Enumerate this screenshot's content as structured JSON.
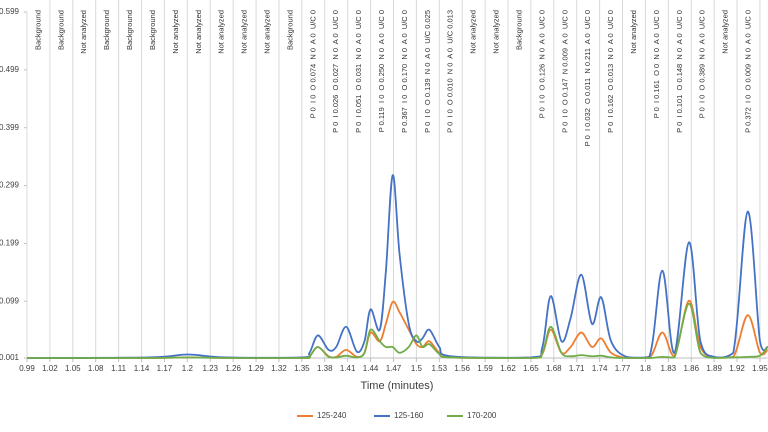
{
  "chart_data": {
    "type": "line",
    "x_label": "Time (minutes)",
    "xlim": [
      0.99,
      1.96
    ],
    "xticks": [
      0.99,
      1.02,
      1.05,
      1.08,
      1.11,
      1.14,
      1.17,
      1.2,
      1.23,
      1.26,
      1.29,
      1.32,
      1.35,
      1.38,
      1.41,
      1.44,
      1.47,
      1.5,
      1.53,
      1.56,
      1.59,
      1.62,
      1.65,
      1.68,
      1.71,
      1.74,
      1.77,
      1.8,
      1.83,
      1.86,
      1.89,
      1.92,
      1.95
    ],
    "ylim": [
      0.001,
      0.599
    ],
    "yticks": [
      0.001,
      0.099,
      0.199,
      0.299,
      0.399,
      0.499,
      0.599
    ],
    "x_grid": true,
    "legend": "bottom",
    "x": [
      0.99,
      1.15,
      1.2,
      1.25,
      1.35,
      1.36,
      1.371,
      1.385,
      1.395,
      1.408,
      1.422,
      1.432,
      1.44,
      1.452,
      1.46,
      1.469,
      1.478,
      1.49,
      1.5,
      1.508,
      1.517,
      1.53,
      1.545,
      1.65,
      1.665,
      1.676,
      1.69,
      1.702,
      1.716,
      1.73,
      1.742,
      1.755,
      1.775,
      1.805,
      1.822,
      1.838,
      1.857,
      1.872,
      1.89,
      1.915,
      1.934,
      1.95,
      1.96
    ],
    "series": [
      {
        "name": "125-240",
        "color": "#ed7d31",
        "values": [
          0.001,
          0.001,
          0.002,
          0.001,
          0.001,
          0.004,
          0.02,
          0.004,
          0.003,
          0.015,
          0.003,
          0.01,
          0.045,
          0.03,
          0.06,
          0.098,
          0.08,
          0.05,
          0.025,
          0.02,
          0.03,
          0.01,
          0.002,
          0.001,
          0.008,
          0.05,
          0.01,
          0.02,
          0.045,
          0.02,
          0.035,
          0.01,
          0.001,
          0.001,
          0.045,
          0.005,
          0.1,
          0.02,
          0.002,
          0.003,
          0.075,
          0.01,
          0.015
        ]
      },
      {
        "name": "125-160",
        "color": "#4472c4",
        "values": [
          0.001,
          0.002,
          0.007,
          0.002,
          0.002,
          0.01,
          0.04,
          0.015,
          0.02,
          0.055,
          0.012,
          0.03,
          0.085,
          0.05,
          0.15,
          0.317,
          0.18,
          0.06,
          0.03,
          0.035,
          0.05,
          0.02,
          0.004,
          0.002,
          0.02,
          0.108,
          0.03,
          0.07,
          0.145,
          0.06,
          0.106,
          0.03,
          0.003,
          0.003,
          0.152,
          0.01,
          0.201,
          0.03,
          0.003,
          0.01,
          0.254,
          0.03,
          0.02
        ]
      },
      {
        "name": "170-200",
        "color": "#70ad47",
        "values": [
          0.001,
          0.001,
          0.002,
          0.001,
          0.001,
          0.004,
          0.02,
          0.003,
          0.002,
          0.005,
          0.002,
          0.01,
          0.05,
          0.03,
          0.02,
          0.02,
          0.01,
          0.02,
          0.04,
          0.02,
          0.025,
          0.008,
          0.002,
          0.001,
          0.01,
          0.055,
          0.01,
          0.004,
          0.006,
          0.004,
          0.005,
          0.002,
          0.001,
          0.001,
          0.003,
          0.002,
          0.095,
          0.01,
          0.001,
          0.002,
          0.003,
          0.005,
          0.02
        ]
      }
    ],
    "annotations": [
      {
        "x": 1.005,
        "label": "Background"
      },
      {
        "x": 1.035,
        "label": "Background"
      },
      {
        "x": 1.065,
        "label": "Not analyzed"
      },
      {
        "x": 1.095,
        "label": "Background"
      },
      {
        "x": 1.125,
        "label": "Background"
      },
      {
        "x": 1.155,
        "label": "Background"
      },
      {
        "x": 1.185,
        "label": "Not analyzed"
      },
      {
        "x": 1.215,
        "label": "Not analyzed"
      },
      {
        "x": 1.245,
        "label": "Not analyzed"
      },
      {
        "x": 1.275,
        "label": "Not analyzed"
      },
      {
        "x": 1.305,
        "label": "Not analyzed"
      },
      {
        "x": 1.335,
        "label": "Background"
      },
      {
        "x": 1.365,
        "label": "P 0  I 0  O 0.074  N 0  A 0  U/C 0"
      },
      {
        "x": 1.395,
        "label": "P 0  I 0.026  O 0.027  N 0  A 0  U/C 0"
      },
      {
        "x": 1.425,
        "label": "P 0  I 0.051  O 0.031  N 0  A 0  U/C 0"
      },
      {
        "x": 1.455,
        "label": "P 0.119  I 0  O 0.250  N 0  A 0  U/C 0"
      },
      {
        "x": 1.485,
        "label": "P 0.367  I 0  O 0.170  N 0  A 0  U/C 0"
      },
      {
        "x": 1.515,
        "label": "P 0  I 0  O 0.139  N 0  A 0  U/C 0.025"
      },
      {
        "x": 1.545,
        "label": "P 0  I 0  O 0.010  N 0  A 0  U/C 0.013"
      },
      {
        "x": 1.575,
        "label": "Not analyzed"
      },
      {
        "x": 1.605,
        "label": "Not analyzed"
      },
      {
        "x": 1.635,
        "label": "Background"
      },
      {
        "x": 1.665,
        "label": "P 0  I 0  O 0.126  N 0  A 0  U/C 0"
      },
      {
        "x": 1.695,
        "label": "P 0  I 0  O 0.147  N 0.009  A 0  U/C 0"
      },
      {
        "x": 1.725,
        "label": "P 0  I 0.032  O 0.011  N 0.211  A 0  U/C 0"
      },
      {
        "x": 1.755,
        "label": "P 0  I 0.162  O 0.013  N 0  A 0  U/C 0"
      },
      {
        "x": 1.785,
        "label": "Not analyzed"
      },
      {
        "x": 1.815,
        "label": "P 0  I 0.161  O 0  N 0  A 0  U/C 0"
      },
      {
        "x": 1.845,
        "label": "P 0  I 0.101  O 0.148  N 0  A 0  U/C 0"
      },
      {
        "x": 1.875,
        "label": "P 0  I 0  O 0.389  N 0  A 0  U/C 0"
      },
      {
        "x": 1.905,
        "label": "Not analyzed"
      },
      {
        "x": 1.935,
        "label": "P 0.372  I 0  O 0.009  N 0  A 0  U/C 0"
      }
    ]
  }
}
